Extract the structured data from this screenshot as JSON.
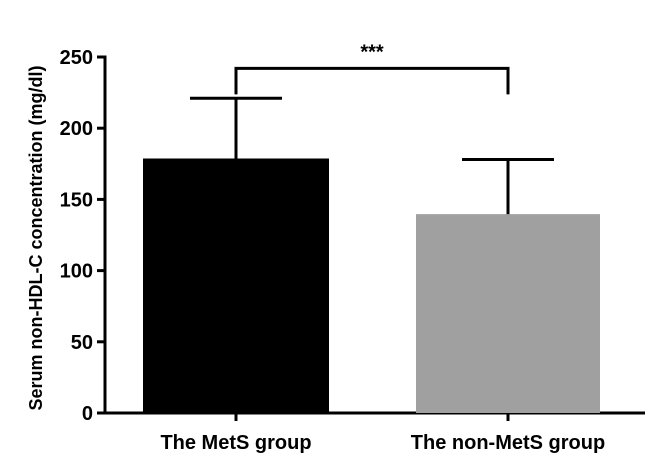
{
  "chart_data": {
    "type": "bar",
    "title": "",
    "xlabel": "",
    "ylabel": "Serum non-HDL-C concentration (mg/dl)",
    "ylim": [
      0,
      250
    ],
    "yticks": [
      0,
      50,
      100,
      150,
      200,
      250
    ],
    "ytick_labels": [
      "0",
      "50",
      "100",
      "150",
      "200",
      "250"
    ],
    "grid": false,
    "categories": [
      "The MetS group",
      "The non-MetS group"
    ],
    "values": [
      178,
      139
    ],
    "error_upper": [
      221,
      178
    ],
    "colors": [
      "#000000",
      "#a0a0a0"
    ],
    "significance": {
      "label": "***",
      "between": [
        0,
        1
      ],
      "bracket_value": 242
    }
  }
}
